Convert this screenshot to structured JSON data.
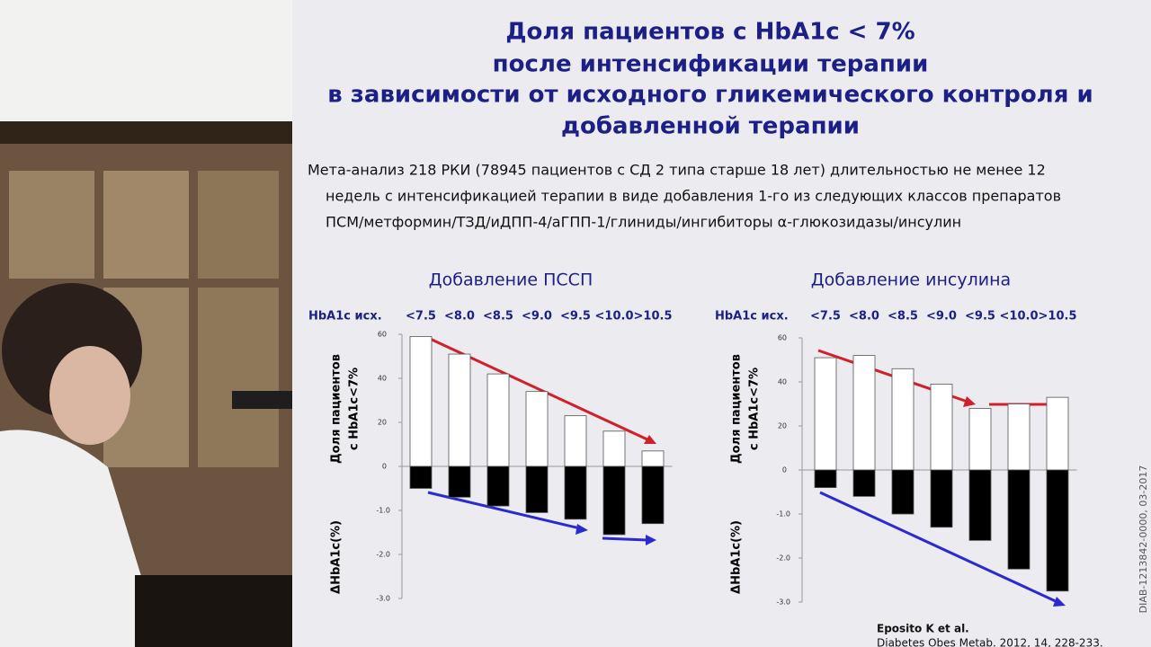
{
  "slide": {
    "title_lines": [
      "Доля пациентов с HbA1c < 7%",
      "после интенсификации терапии",
      "в зависимости от исходного гликемического контроля и",
      "добавленной терапии"
    ],
    "description_lines": [
      "Мета-анализ 218 РКИ (78945 пациентов с СД 2 типа старше 18 лет) длительностью не менее 12",
      "недель с интенсификацией терапии в виде добавления  1-го из следующих классов   препаратов",
      "ПСМ/метформин/ТЗД/иДПП-4/аГПП-1/глиниды/ингибиторы α-глюкозидазы/инсулин"
    ],
    "citation_author": "Eposito K et al.",
    "citation_source": "Diabetes Obes Metab. 2012, 14, 228-233.",
    "side_code": "DIAB-1213842-0000, 03-2017"
  },
  "chart_data": [
    {
      "type": "bar",
      "title": "Добавление ПССП",
      "x_label": "HbA1c исх.",
      "y_label": [
        "Доля пациентов",
        "с HbA1c<7%"
      ],
      "y2_label": "ΔHbA1c(%)",
      "categories": [
        "<7.5",
        "<8.0",
        "<8.5",
        "<9.0",
        "<9.5",
        "<10.0",
        ">10.5"
      ],
      "series": [
        {
          "name": "Доля пациентов с HbA1c<7%",
          "color": "#ffffff",
          "values": [
            59,
            51,
            42,
            34,
            23,
            16,
            7
          ]
        },
        {
          "name": "ΔHbA1c(%)",
          "color": "#000000",
          "axis": "y2",
          "values": [
            -0.5,
            -0.7,
            -0.9,
            -1.05,
            -1.2,
            -1.55,
            -1.3
          ]
        }
      ],
      "ylim": [
        0,
        60
      ],
      "yticks": [
        0,
        20,
        40,
        60
      ],
      "y2lim": [
        -3,
        0
      ],
      "y2ticks": [
        {
          "value": -1,
          "label": "-1.0"
        },
        {
          "value": -2,
          "label": "-2.0"
        },
        {
          "value": -3,
          "label": "-3.0"
        }
      ]
    },
    {
      "type": "bar",
      "title": "Добавление инсулина",
      "x_label": "HbA1c исх.",
      "y_label": [
        "Доля пациентов",
        "с HbA1c<7%"
      ],
      "y2_label": "ΔHbA1c(%)",
      "categories": [
        "<7.5",
        "<8.0",
        "<8.5",
        "<9.0",
        "<9.5",
        "<10.0",
        ">10.5"
      ],
      "series": [
        {
          "name": "Доля пациентов с HbA1c<7%",
          "color": "#ffffff",
          "values": [
            51,
            52,
            46,
            39,
            28,
            30,
            33
          ]
        },
        {
          "name": "ΔHbA1c(%)",
          "color": "#000000",
          "axis": "y2",
          "values": [
            -0.4,
            -0.6,
            -1.0,
            -1.3,
            -1.6,
            -2.25,
            -2.75
          ]
        }
      ],
      "ylim": [
        0,
        60
      ],
      "yticks": [
        0,
        20,
        40,
        60
      ],
      "y2lim": [
        -3,
        0
      ],
      "y2ticks": [
        {
          "value": -1,
          "label": "-1.0"
        },
        {
          "value": -2,
          "label": "-2.0"
        },
        {
          "value": -3,
          "label": "-3.0"
        }
      ]
    }
  ]
}
